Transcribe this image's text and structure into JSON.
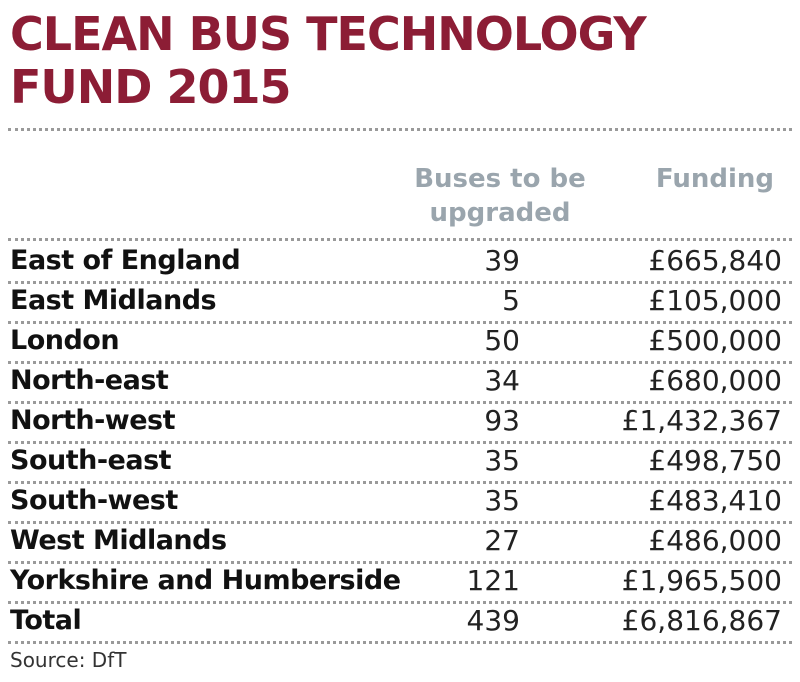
{
  "title": "CLEAN BUS TECHNOLOGY FUND 2015",
  "columns": {
    "buses": "Buses to be upgraded",
    "funding": "Funding"
  },
  "rows": [
    {
      "region": "East of England",
      "buses": "39",
      "funding": "£665,840"
    },
    {
      "region": "East Midlands",
      "buses": "5",
      "funding": "£105,000"
    },
    {
      "region": "London",
      "buses": "50",
      "funding": "£500,000"
    },
    {
      "region": "North-east",
      "buses": "34",
      "funding": "£680,000"
    },
    {
      "region": "North-west",
      "buses": "93",
      "funding": "£1,432,367"
    },
    {
      "region": "South-east",
      "buses": "35",
      "funding": "£498,750"
    },
    {
      "region": "South-west",
      "buses": "35",
      "funding": "£483,410"
    },
    {
      "region": "West Midlands",
      "buses": "27",
      "funding": "£486,000"
    },
    {
      "region": "Yorkshire and Humberside",
      "buses": "121",
      "funding": "£1,965,500"
    },
    {
      "region": "Total",
      "buses": "439",
      "funding": "£6,816,867"
    }
  ],
  "source": "Source: DfT",
  "colors": {
    "title": "#8c1d35",
    "header": "#9aa5ad",
    "divider": "#9a9a9a"
  }
}
